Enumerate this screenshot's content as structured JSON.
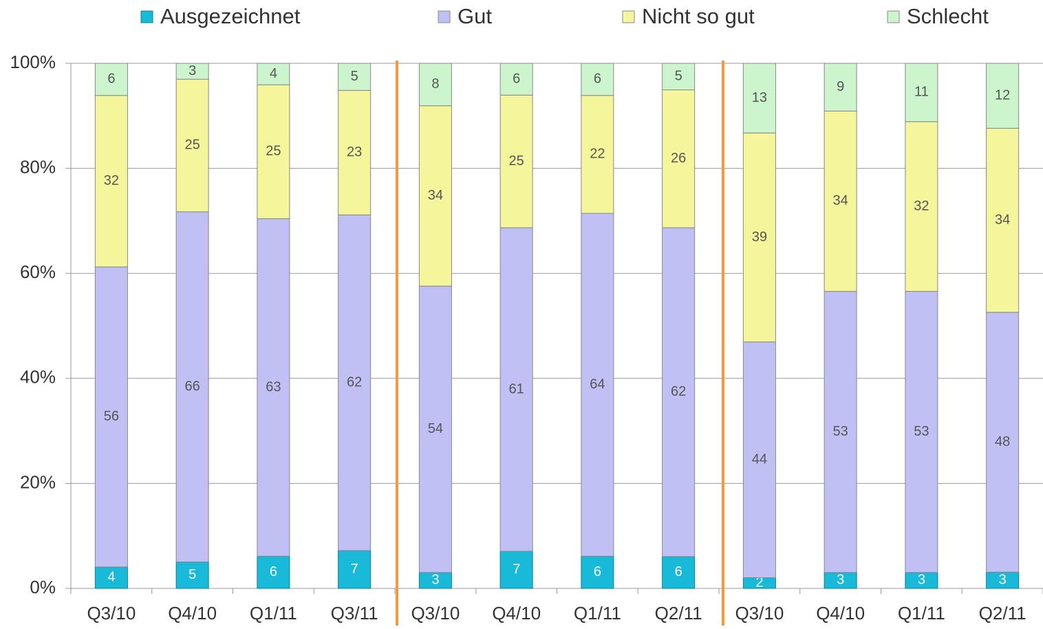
{
  "chart_data": {
    "type": "bar",
    "stack": "percent",
    "categories": [
      "Q3/10",
      "Q4/10",
      "Q1/11",
      "Q3/11",
      "Q3/10",
      "Q4/10",
      "Q1/11",
      "Q2/11",
      "Q3/10",
      "Q4/10",
      "Q1/11",
      "Q2/11"
    ],
    "series": [
      {
        "name": "Ausgezeichnet",
        "color": "#19b9d9",
        "values": [
          4,
          5,
          6,
          7,
          3,
          7,
          6,
          6,
          2,
          3,
          3,
          3
        ]
      },
      {
        "name": "Gut",
        "color": "#c0c0f5",
        "values": [
          56,
          66,
          63,
          62,
          54,
          61,
          64,
          62,
          44,
          53,
          53,
          48
        ]
      },
      {
        "name": "Nicht so gut",
        "color": "#f5f59b",
        "values": [
          32,
          25,
          25,
          23,
          34,
          25,
          22,
          26,
          39,
          34,
          32,
          34
        ]
      },
      {
        "name": "Schlecht",
        "color": "#cdf5cd",
        "values": [
          6,
          3,
          4,
          5,
          8,
          6,
          6,
          5,
          13,
          9,
          11,
          12
        ]
      }
    ],
    "ylim": [
      0,
      100
    ],
    "yticks": [
      {
        "value": 0,
        "label": "0%"
      },
      {
        "value": 20,
        "label": "20%"
      },
      {
        "value": 40,
        "label": "40%"
      },
      {
        "value": 60,
        "label": "60%"
      },
      {
        "value": 80,
        "label": "80%"
      },
      {
        "value": 100,
        "label": "100%"
      }
    ],
    "grid": true,
    "legend": "top"
  }
}
